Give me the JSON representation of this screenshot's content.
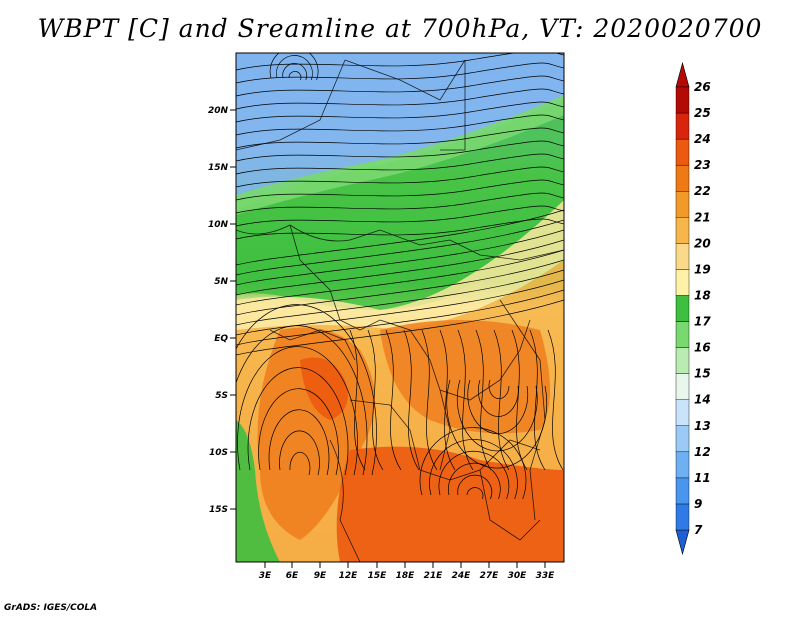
{
  "title": "WBPT [C] and Sreamline at 700hPa, VT: 2020020700",
  "footer": "GrADS: IGES/COLA",
  "lat_labels": [
    "20N",
    "15N",
    "10N",
    "5N",
    "EQ",
    "5S",
    "10S",
    "15S"
  ],
  "lon_labels": [
    "3E",
    "6E",
    "9E",
    "12E",
    "15E",
    "18E",
    "21E",
    "24E",
    "27E",
    "30E",
    "33E"
  ],
  "colorbar": {
    "levels": [
      "7",
      "9",
      "11",
      "12",
      "13",
      "14",
      "15",
      "16",
      "17",
      "18",
      "19",
      "20",
      "21",
      "22",
      "23",
      "24",
      "25",
      "26"
    ],
    "colors": [
      "#1f5fd6",
      "#2f7ae6",
      "#4a95ee",
      "#6fb0f2",
      "#9ccaf6",
      "#c8e3fa",
      "#e8f6ec",
      "#b8ecb0",
      "#79d86f",
      "#3fbf3f",
      "#fff2a8",
      "#fbd98a",
      "#f6b64c",
      "#f19a2a",
      "#ee7a16",
      "#ec5a10",
      "#d8260c",
      "#b40a06"
    ]
  },
  "palette": {
    "blue": "#7fb4ee",
    "lightblue": "#bcdcf8",
    "green": "#3fbf3f",
    "lightgreen": "#79d86f",
    "yellow": "#fde9a0",
    "orange": "#f5b14c",
    "darkorange": "#ef7e1e",
    "red": "#ec5a10"
  }
}
